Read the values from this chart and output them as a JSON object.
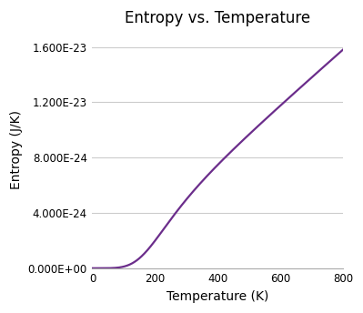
{
  "title": "Entropy vs. Temperature",
  "xlabel": "Temperature (K)",
  "ylabel": "Entropy (J/K)",
  "xlim": [
    0,
    800
  ],
  "ylim": [
    0,
    1.72e-23
  ],
  "yticks": [
    0,
    4e-24,
    8e-24,
    1.2e-23,
    1.6e-23
  ],
  "ytick_labels": [
    "0.000E+00",
    "4.000E-24",
    "8.000E-24",
    "1.200E-23",
    "1.600E-23"
  ],
  "xticks": [
    0,
    200,
    400,
    600,
    800
  ],
  "line_color": "#6B2D8B",
  "line_width": 1.6,
  "background_color": "#ffffff",
  "grid_color": "#cccccc",
  "title_fontsize": 12,
  "label_fontsize": 10,
  "S_at_800": 1.58e-23,
  "T_knee": 120.0,
  "curve_power": 3.0
}
